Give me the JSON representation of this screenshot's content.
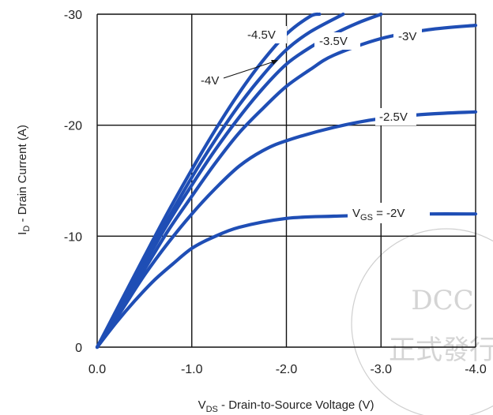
{
  "chart_data": {
    "type": "line",
    "xlabel": {
      "main": "V",
      "sub": "DS",
      "rest": " - Drain-to-Source Voltage (V)"
    },
    "ylabel": {
      "main": "I",
      "sub": "D",
      "rest": " - Drain Current (A)"
    },
    "xlim": [
      0,
      -4.0
    ],
    "ylim": [
      0,
      -30
    ],
    "xticks": [
      "0.0",
      "-1.0",
      "-2.0",
      "-3.0",
      "-4.0"
    ],
    "yticks": [
      "0",
      "-10",
      "-20",
      "-30"
    ],
    "grid": true,
    "color": "#1f4eb5",
    "series": [
      {
        "name": "-2V",
        "label_prefix": "V",
        "label_sub": "GS",
        "label_rest": " = -2V",
        "x": [
          0,
          -0.2,
          -0.4,
          -0.6,
          -0.8,
          -1.0,
          -1.2,
          -1.5,
          -2.0,
          -2.5,
          -3.0,
          -3.5,
          -4.0
        ],
        "y": [
          0,
          -2.2,
          -4.2,
          -6.0,
          -7.5,
          -8.9,
          -9.8,
          -10.8,
          -11.6,
          -11.8,
          -11.9,
          -12.0,
          -12.0
        ]
      },
      {
        "name": "-2.5V",
        "label_rest": "-2.5V",
        "x": [
          0,
          -0.25,
          -0.5,
          -0.75,
          -1.0,
          -1.25,
          -1.5,
          -1.75,
          -2.0,
          -2.5,
          -3.0,
          -3.5,
          -4.0
        ],
        "y": [
          0,
          -3.2,
          -6.5,
          -9.4,
          -12.0,
          -14.3,
          -16.3,
          -17.7,
          -18.6,
          -19.8,
          -20.6,
          -21.0,
          -21.2
        ]
      },
      {
        "name": "-3V",
        "label_rest": "-3V",
        "x": [
          0,
          -0.25,
          -0.5,
          -0.75,
          -1.0,
          -1.25,
          -1.5,
          -1.75,
          -2.0,
          -2.25,
          -2.5,
          -3.0,
          -3.5,
          -4.0
        ],
        "y": [
          0,
          -3.5,
          -7.0,
          -10.5,
          -13.6,
          -16.6,
          -19.3,
          -21.5,
          -23.5,
          -25.0,
          -26.3,
          -27.8,
          -28.6,
          -29.0
        ]
      },
      {
        "name": "-3.5V",
        "label_rest": "-3.5V",
        "x": [
          0,
          -0.25,
          -0.5,
          -0.75,
          -1.0,
          -1.25,
          -1.5,
          -1.75,
          -2.0,
          -2.25,
          -2.5,
          -2.75,
          -3.0
        ],
        "y": [
          0,
          -3.7,
          -7.5,
          -11.2,
          -14.6,
          -17.8,
          -20.7,
          -23.3,
          -25.5,
          -27.0,
          -28.2,
          -29.2,
          -30.0
        ]
      },
      {
        "name": "-4V",
        "label_rest": "-4V",
        "x": [
          0,
          -0.25,
          -0.5,
          -0.75,
          -1.0,
          -1.25,
          -1.5,
          -1.75,
          -2.0,
          -2.25,
          -2.6
        ],
        "y": [
          0,
          -3.9,
          -7.8,
          -11.6,
          -15.3,
          -18.7,
          -21.8,
          -24.5,
          -26.8,
          -28.4,
          -30.0
        ]
      },
      {
        "name": "-4.5V",
        "label_rest": "-4.5V",
        "x": [
          0,
          -0.25,
          -0.5,
          -0.75,
          -1.0,
          -1.25,
          -1.5,
          -1.75,
          -2.0,
          -2.25,
          -2.35
        ],
        "y": [
          0,
          -4.1,
          -8.2,
          -12.2,
          -16.0,
          -19.6,
          -22.9,
          -25.8,
          -28.2,
          -29.8,
          -30.0
        ]
      }
    ]
  },
  "watermark": {
    "line1": "DCC",
    "line2": "正式發行"
  }
}
